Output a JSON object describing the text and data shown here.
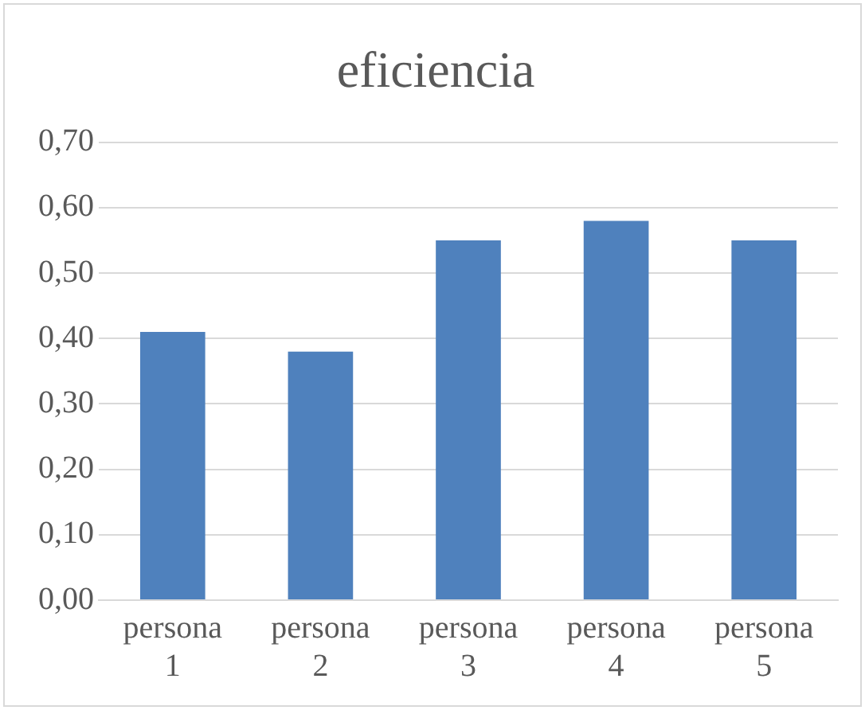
{
  "chart_data": {
    "type": "bar",
    "title": "eficiencia",
    "categories": [
      "persona 1",
      "persona 2",
      "persona 3",
      "persona 4",
      "persona 5"
    ],
    "values": [
      0.41,
      0.38,
      0.55,
      0.58,
      0.55
    ],
    "color": "#4f81bd",
    "ylim": [
      0,
      0.7
    ],
    "yticks": [
      {
        "value": 0,
        "label": "0,00"
      },
      {
        "value": 0.1,
        "label": "0,10"
      },
      {
        "value": 0.2,
        "label": "0,20"
      },
      {
        "value": 0.3,
        "label": "0,30"
      },
      {
        "value": 0.4,
        "label": "0,40"
      },
      {
        "value": 0.5,
        "label": "0,50"
      },
      {
        "value": 0.6,
        "label": "0,60"
      },
      {
        "value": 0.7,
        "label": "0,70"
      }
    ],
    "grid": "y",
    "legend": false
  }
}
